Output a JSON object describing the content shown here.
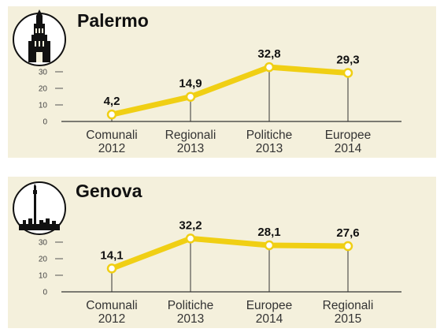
{
  "colors": {
    "panel_bg": "#f4f0dc",
    "line": "#f0cf14",
    "marker_fill": "#ffffff",
    "icon_bg": "#111111"
  },
  "chart_data": [
    {
      "type": "line",
      "title": "Palermo",
      "icon": "cathedral-tower-icon",
      "categories": [
        [
          "Comunali",
          "2012"
        ],
        [
          "Regionali",
          "2013"
        ],
        [
          "Politiche",
          "2013"
        ],
        [
          "Europee",
          "2014"
        ]
      ],
      "values": [
        4.2,
        14.9,
        32.8,
        29.3
      ],
      "value_labels": [
        "4,2",
        "14,9",
        "32,8",
        "29,3"
      ],
      "yticks": [
        "0",
        "10",
        "20",
        "30"
      ],
      "ylim": [
        0,
        35
      ],
      "grid": false
    },
    {
      "type": "line",
      "title": "Genova",
      "icon": "lighthouse-skyline-icon",
      "categories": [
        [
          "Comunali",
          "2012"
        ],
        [
          "Politiche",
          "2013"
        ],
        [
          "Europee",
          "2014"
        ],
        [
          "Regionali",
          "2015"
        ]
      ],
      "values": [
        14.1,
        32.2,
        28.1,
        27.6
      ],
      "value_labels": [
        "14,1",
        "32,2",
        "28,1",
        "27,6"
      ],
      "yticks": [
        "0",
        "10",
        "20",
        "30"
      ],
      "ylim": [
        0,
        35
      ],
      "grid": false
    }
  ]
}
